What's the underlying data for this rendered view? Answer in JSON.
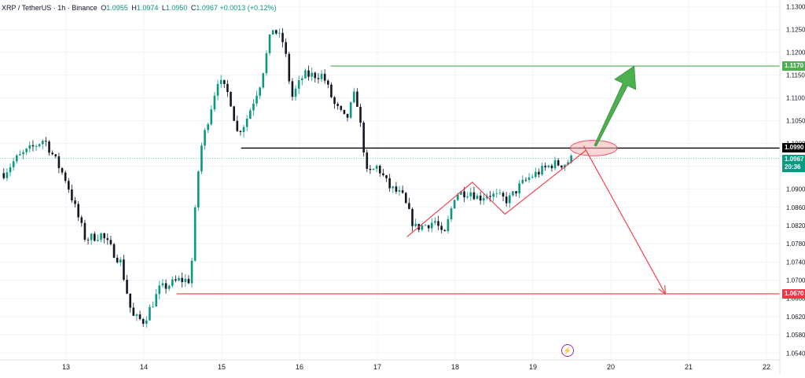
{
  "header": {
    "symbol": "XRP / TetherUS · 1h · Binance",
    "open_label": "O",
    "open": "1.0955",
    "high_label": "H",
    "high": "1.0974",
    "low_label": "L",
    "low": "1.0950",
    "close_label": "C",
    "close": "1.0967",
    "change": "+0.0013 (+0.12%)"
  },
  "price_tags": {
    "target_up": "1.1170",
    "resistance": "1.0990",
    "current": "1.0967",
    "countdown": "20:36",
    "target_down": "1.0670"
  },
  "colors": {
    "up": "#089981",
    "down": "#131722",
    "green_line": "#4caf50",
    "red_line": "#f23645",
    "black_line": "#000000",
    "arrow_up": "#4caf50",
    "arrow_down": "#f23645",
    "ellipse_fill": "#f8b4b4",
    "ellipse_stroke": "#f23645"
  },
  "icons": {
    "bottom_marker": "lightning-icon"
  },
  "chart_data": {
    "type": "candlestick",
    "ylim": [
      1.0525,
      1.1315
    ],
    "y_ticks": [
      "1.1300",
      "1.1250",
      "1.1200",
      "1.1150",
      "1.1100",
      "1.1050",
      "1.1000",
      "1.0950",
      "1.0900",
      "1.0860",
      "1.0820",
      "1.0780",
      "1.0740",
      "1.0700",
      "1.0660",
      "1.0620",
      "1.0580",
      "1.0540"
    ],
    "x_ticks": [
      "13",
      "14",
      "15",
      "16",
      "17",
      "18",
      "19",
      "20",
      "21",
      "22"
    ],
    "x_tick_days": [
      0,
      1,
      2,
      3,
      4,
      5,
      6,
      7,
      8,
      9
    ],
    "day_start": 12.2,
    "hours_per_candle": 1,
    "key_points": [
      [
        12.2,
        1.0935
      ],
      [
        12.35,
        1.0965
      ],
      [
        12.6,
        1.0995
      ],
      [
        12.72,
        1.101
      ],
      [
        13.0,
        1.092
      ],
      [
        13.25,
        1.079
      ],
      [
        13.45,
        1.08
      ],
      [
        13.7,
        1.074
      ],
      [
        13.85,
        1.062
      ],
      [
        14.0,
        1.061
      ],
      [
        14.2,
        1.068
      ],
      [
        14.45,
        1.07
      ],
      [
        14.6,
        1.07
      ],
      [
        14.67,
        1.088
      ],
      [
        14.72,
        1.098
      ],
      [
        14.85,
        1.107
      ],
      [
        14.95,
        1.114
      ],
      [
        15.1,
        1.1105
      ],
      [
        15.2,
        1.1025
      ],
      [
        15.3,
        1.1045
      ],
      [
        15.5,
        1.1135
      ],
      [
        15.65,
        1.1255
      ],
      [
        15.8,
        1.122
      ],
      [
        15.9,
        1.11
      ],
      [
        16.05,
        1.115
      ],
      [
        16.3,
        1.115
      ],
      [
        16.45,
        1.1085
      ],
      [
        16.6,
        1.105
      ],
      [
        16.72,
        1.1115
      ],
      [
        16.82,
        1.0995
      ],
      [
        16.87,
        1.093
      ],
      [
        17.0,
        1.095
      ],
      [
        17.15,
        1.0905
      ],
      [
        17.32,
        1.0885
      ],
      [
        17.48,
        1.0815
      ],
      [
        17.6,
        1.082
      ],
      [
        17.75,
        1.083
      ],
      [
        17.85,
        1.079
      ],
      [
        18.0,
        1.089
      ],
      [
        18.2,
        1.0895
      ],
      [
        18.3,
        1.088
      ],
      [
        18.42,
        1.089
      ],
      [
        18.6,
        1.088
      ],
      [
        18.68,
        1.0875
      ],
      [
        18.82,
        1.0905
      ],
      [
        18.95,
        1.0925
      ],
      [
        19.05,
        1.0935
      ],
      [
        19.25,
        1.0955
      ],
      [
        19.4,
        1.0955
      ],
      [
        19.5,
        1.0967
      ]
    ],
    "horizontal_levels": [
      {
        "name": "target-up",
        "price": 1.117,
        "from_day": 16.4,
        "to_day": 22.5
      },
      {
        "name": "resistance",
        "price": 1.099,
        "from_day": 15.25,
        "to_day": 22.5
      },
      {
        "name": "target-down",
        "price": 1.067,
        "from_day": 14.42,
        "to_day": 22.5
      }
    ],
    "pattern_path": [
      [
        17.38,
        1.0795
      ],
      [
        18.22,
        1.0915
      ],
      [
        18.64,
        1.0845
      ],
      [
        19.68,
        1.0985
      ]
    ],
    "arrow_up": {
      "from": [
        19.8,
        1.0995
      ],
      "to": [
        20.3,
        1.117
      ]
    },
    "arrow_down": {
      "from": [
        19.65,
        1.0995
      ],
      "to": [
        20.7,
        1.067
      ]
    },
    "ellipse": {
      "center": [
        19.78,
        1.099
      ],
      "rx_days": 0.3,
      "ry_price": 0.0017
    }
  }
}
